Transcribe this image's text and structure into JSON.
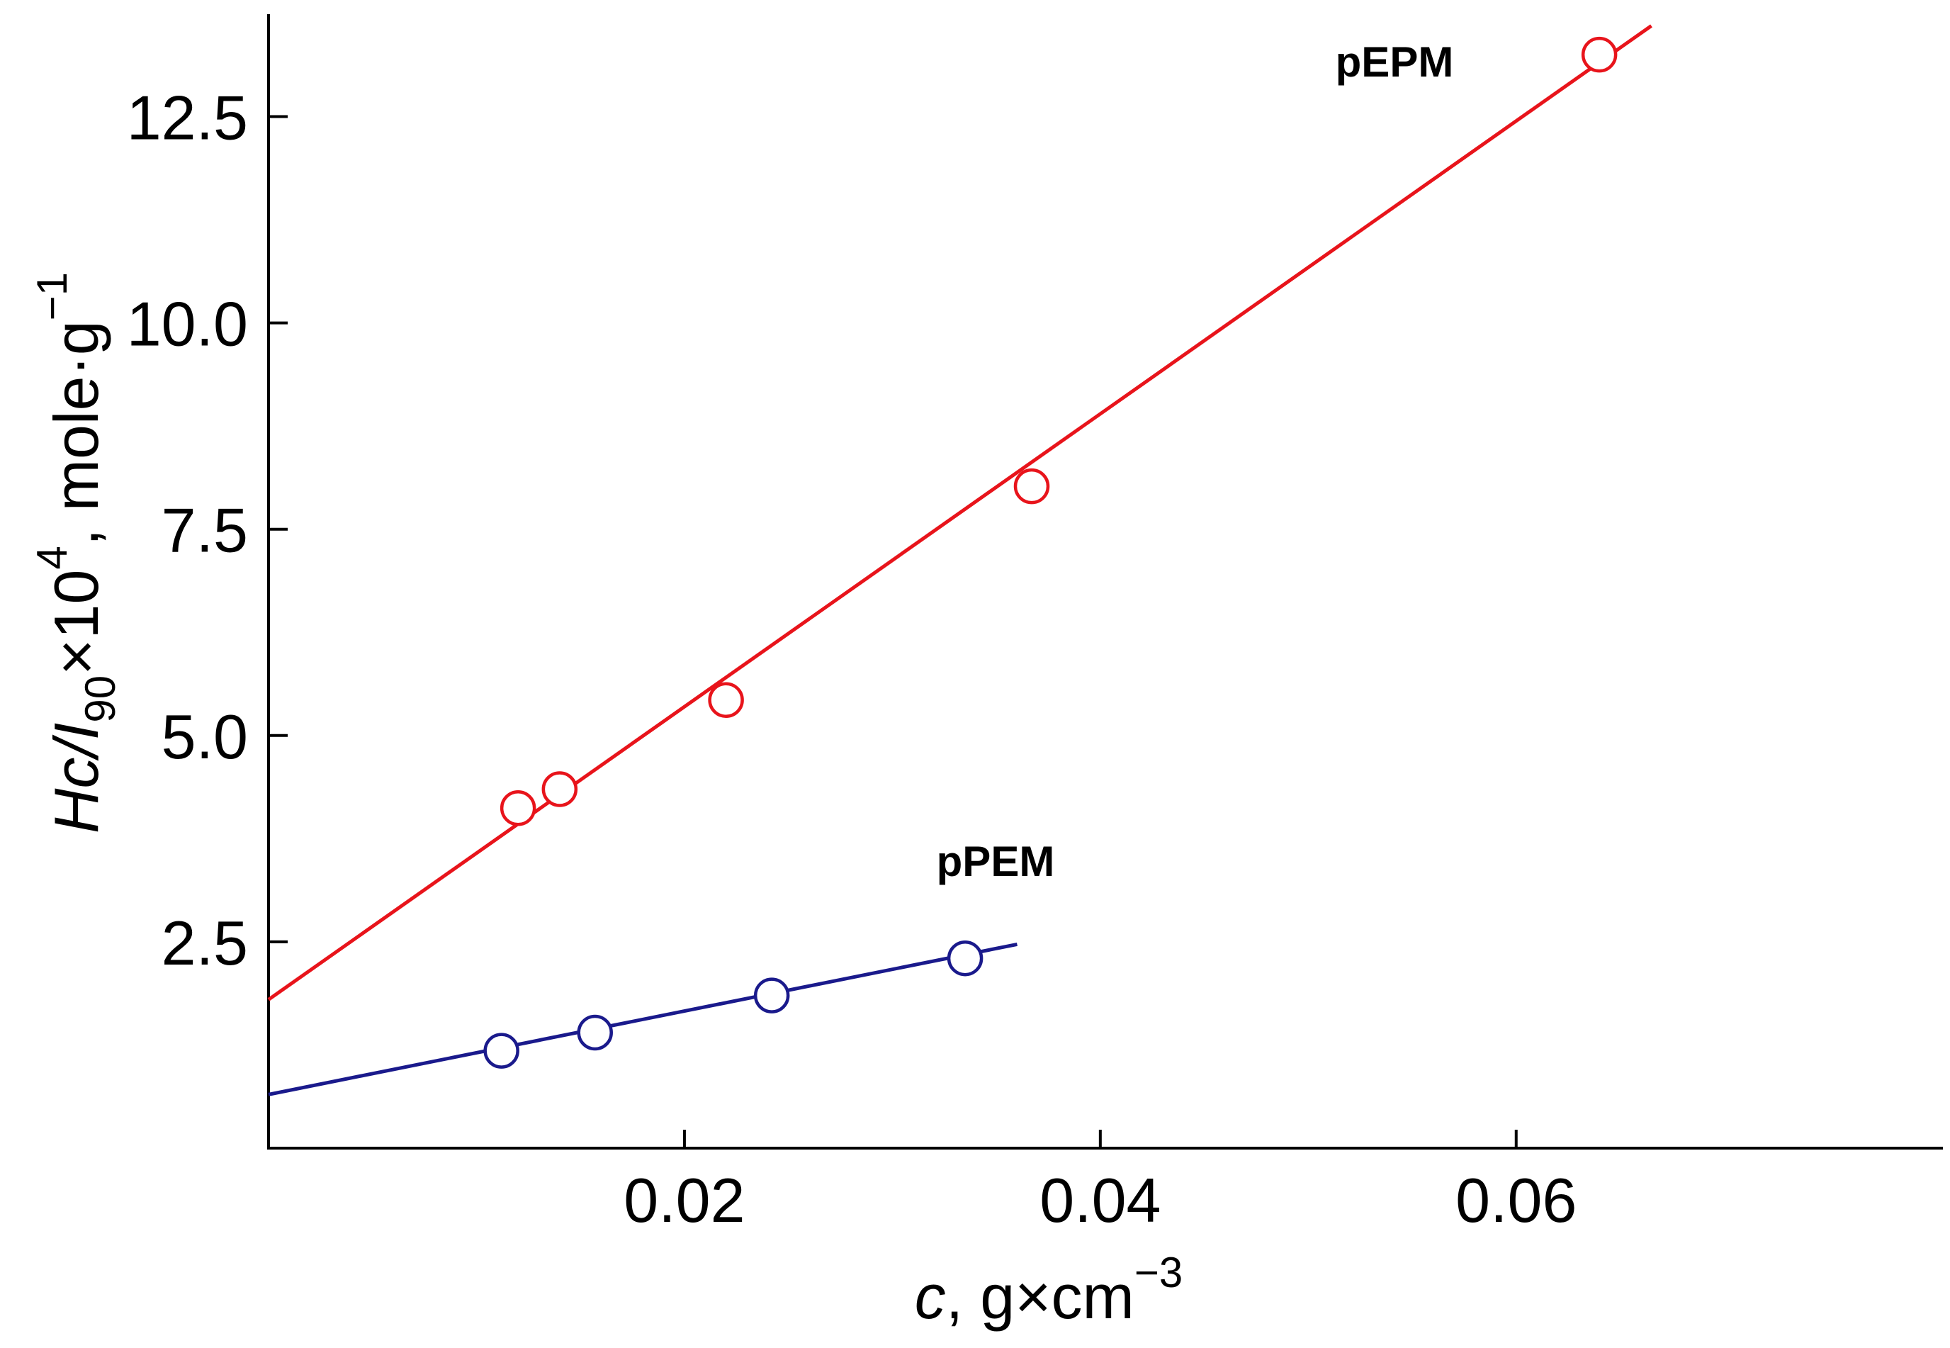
{
  "chart_data": {
    "type": "scatter",
    "title": "",
    "xlabel": {
      "var": "c",
      "comma": ",",
      "units": "g×cm",
      "exp": "−3"
    },
    "ylabel": {
      "var": "Hc/I",
      "sub": "90",
      "times": "×10",
      "pow": "4",
      "units": ", mole·g",
      "exp": "−1"
    },
    "xlim": [
      0.0,
      0.08
    ],
    "ylim": [
      0.0,
      13.8
    ],
    "x_ticks": [
      0.02,
      0.04,
      0.06
    ],
    "x_tick_labels": [
      "0.02",
      "0.04",
      "0.06"
    ],
    "y_ticks": [
      2.5,
      5.0,
      7.5,
      10.0,
      12.5
    ],
    "y_tick_labels": [
      "2.5",
      "5.0",
      "7.5",
      "10.0",
      "12.5"
    ],
    "grid": false,
    "series": [
      {
        "name": "pEPM",
        "color": "#e8141b",
        "points": [
          {
            "x": 0.012,
            "y": 4.12
          },
          {
            "x": 0.014,
            "y": 4.35
          },
          {
            "x": 0.022,
            "y": 5.43
          },
          {
            "x": 0.0367,
            "y": 8.02
          },
          {
            "x": 0.064,
            "y": 13.25
          }
        ],
        "fit": {
          "x1": 0.0,
          "y1": 1.8,
          "x2": 0.0665,
          "y2": 13.6
        }
      },
      {
        "name": "pPEM",
        "color": "#1a1a8c",
        "points": [
          {
            "x": 0.0112,
            "y": 1.18
          },
          {
            "x": 0.0157,
            "y": 1.4
          },
          {
            "x": 0.0242,
            "y": 1.85
          },
          {
            "x": 0.0335,
            "y": 2.3
          }
        ],
        "fit": {
          "x1": 0.0,
          "y1": 0.65,
          "x2": 0.036,
          "y2": 2.47
        }
      }
    ]
  }
}
